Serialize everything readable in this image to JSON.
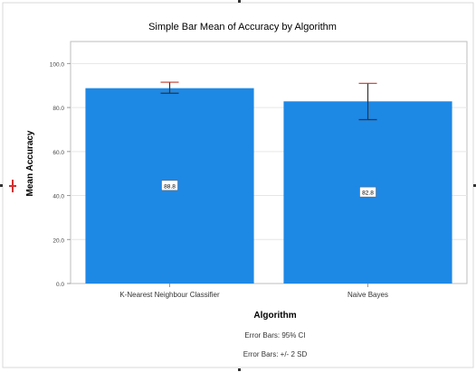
{
  "chart_data": {
    "type": "bar",
    "title": "Simple Bar Mean of Accuracy by Algorithm",
    "xlabel": "Algorithm",
    "ylabel": "Mean Accuracy",
    "categories": [
      "K-Nearest Neighbour Classifier",
      "Naive Bayes"
    ],
    "values": [
      88.8,
      82.8
    ],
    "value_labels": [
      "88.8",
      "82.8"
    ],
    "error_bars": [
      {
        "low": 86.5,
        "high": 91.5
      },
      {
        "low": 74.5,
        "high": 91.0
      }
    ],
    "ylim": [
      0,
      110
    ],
    "yticks": [
      0,
      20,
      40,
      60,
      80,
      100
    ],
    "ytick_labels": [
      "0.0",
      "20.0",
      "40.0",
      "60.0",
      "80.0",
      "100.0"
    ],
    "grid": true,
    "footnotes": [
      "Error Bars: 95% CI",
      "Error Bars: +/- 2 SD"
    ],
    "colors": {
      "bar": "#1E88E5",
      "error_bar_ci": "#c0392b",
      "error_bar_sd": "#333333",
      "grid": "#e6e6e6",
      "axis": "#999999"
    }
  }
}
